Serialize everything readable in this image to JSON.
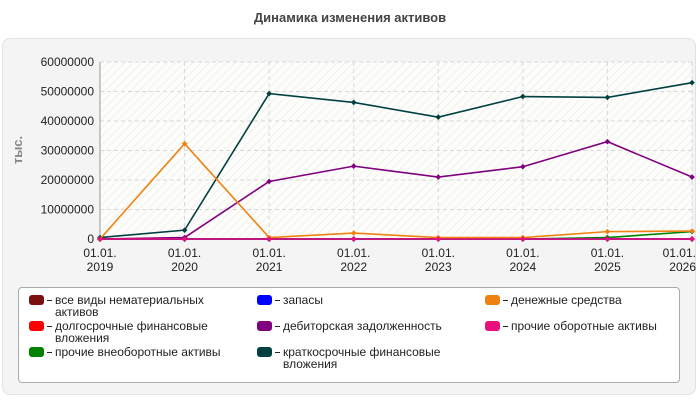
{
  "chart_data": {
    "type": "line",
    "title": "Динамика изменения активов",
    "y_label": "тыс.",
    "categories": [
      "01.01.\n2019",
      "01.01.\n2020",
      "01.01.\n2021",
      "01.01.\n2022",
      "01.01.\n2023",
      "01.01.\n2024",
      "01.01.\n2025",
      "01.01.\n2026"
    ],
    "series": [
      {
        "name": "все виды нематериальных активов",
        "color": "#7a1010",
        "values": [
          0,
          0,
          0,
          0,
          0,
          0,
          0,
          0
        ]
      },
      {
        "name": "долгосрочные финансовые вложения",
        "color": "#ff0000",
        "values": [
          0,
          0,
          0,
          0,
          0,
          0,
          0,
          0
        ]
      },
      {
        "name": "прочие внеоборотные активы",
        "color": "#008000",
        "values": [
          0,
          0,
          0,
          0,
          0,
          0,
          500000,
          2500000
        ]
      },
      {
        "name": "запасы",
        "color": "#0000ff",
        "values": [
          0,
          0,
          0,
          0,
          0,
          0,
          0,
          0
        ]
      },
      {
        "name": "дебиторская задолженность",
        "color": "#800080",
        "values": [
          0,
          500000,
          19500000,
          24700000,
          21000000,
          24500000,
          33000000,
          21000000
        ]
      },
      {
        "name": "краткосрочные финансовые вложения",
        "color": "#004040",
        "values": [
          500000,
          3000000,
          49300000,
          46300000,
          41300000,
          48300000,
          48000000,
          53000000
        ]
      },
      {
        "name": "денежные средства",
        "color": "#f08010",
        "values": [
          0,
          32300000,
          500000,
          2000000,
          500000,
          500000,
          2500000,
          2700000
        ]
      },
      {
        "name": "прочие оборотные активы",
        "color": "#e8107a",
        "values": [
          0,
          0,
          0,
          0,
          0,
          0,
          0,
          0
        ]
      }
    ],
    "ylim": [
      0,
      60000000
    ],
    "yticks": [
      0,
      10000000,
      20000000,
      30000000,
      40000000,
      50000000,
      60000000
    ],
    "grid": true
  }
}
